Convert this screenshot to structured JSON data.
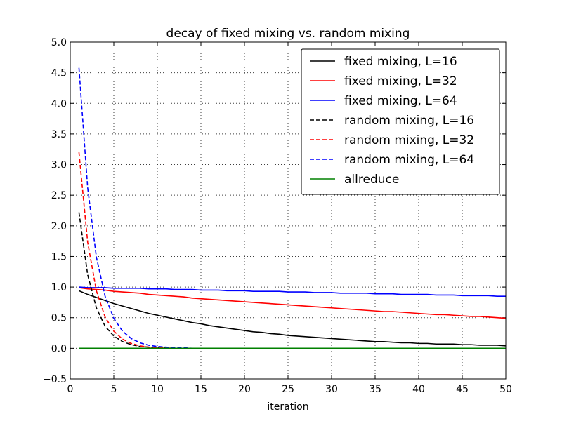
{
  "chart_data": {
    "type": "line",
    "title": "decay of fixed mixing vs. random mixing",
    "xlabel": "iteration",
    "ylabel": "",
    "xlim": [
      0,
      50
    ],
    "ylim": [
      -0.5,
      5.0
    ],
    "xticks": [
      0,
      5,
      10,
      15,
      20,
      25,
      30,
      35,
      40,
      45,
      50
    ],
    "yticks": [
      -0.5,
      0.0,
      0.5,
      1.0,
      1.5,
      2.0,
      2.5,
      3.0,
      3.5,
      4.0,
      4.5,
      5.0
    ],
    "xtick_labels": [
      "0",
      "5",
      "10",
      "15",
      "20",
      "25",
      "30",
      "35",
      "40",
      "45",
      "50"
    ],
    "ytick_labels": [
      "−0.5",
      "0.0",
      "0.5",
      "1.0",
      "1.5",
      "2.0",
      "2.5",
      "3.0",
      "3.5",
      "4.0",
      "4.5",
      "5.0"
    ],
    "grid": true,
    "legend_position": "top-right",
    "x": [
      1,
      2,
      3,
      4,
      5,
      6,
      7,
      8,
      9,
      10,
      11,
      12,
      13,
      14,
      15,
      16,
      17,
      18,
      19,
      20,
      21,
      22,
      23,
      24,
      25,
      26,
      27,
      28,
      29,
      30,
      31,
      32,
      33,
      34,
      35,
      36,
      37,
      38,
      39,
      40,
      41,
      42,
      43,
      44,
      45,
      46,
      47,
      48,
      49,
      50
    ],
    "series": [
      {
        "name": "fixed mixing, L=16",
        "color": "#000000",
        "style": "solid",
        "values": [
          0.94,
          0.88,
          0.83,
          0.78,
          0.73,
          0.69,
          0.65,
          0.61,
          0.57,
          0.54,
          0.51,
          0.48,
          0.45,
          0.42,
          0.4,
          0.37,
          0.35,
          0.33,
          0.31,
          0.29,
          0.27,
          0.26,
          0.24,
          0.23,
          0.21,
          0.2,
          0.19,
          0.18,
          0.17,
          0.16,
          0.15,
          0.14,
          0.13,
          0.12,
          0.11,
          0.11,
          0.1,
          0.09,
          0.09,
          0.08,
          0.08,
          0.07,
          0.07,
          0.07,
          0.06,
          0.06,
          0.05,
          0.05,
          0.05,
          0.04
        ]
      },
      {
        "name": "fixed mixing, L=32",
        "color": "#ff0000",
        "style": "solid",
        "values": [
          0.99,
          0.97,
          0.96,
          0.95,
          0.93,
          0.92,
          0.91,
          0.9,
          0.88,
          0.87,
          0.86,
          0.85,
          0.84,
          0.82,
          0.81,
          0.8,
          0.79,
          0.78,
          0.77,
          0.76,
          0.75,
          0.74,
          0.73,
          0.72,
          0.71,
          0.7,
          0.69,
          0.68,
          0.67,
          0.66,
          0.65,
          0.64,
          0.63,
          0.62,
          0.61,
          0.6,
          0.6,
          0.59,
          0.58,
          0.57,
          0.56,
          0.55,
          0.55,
          0.54,
          0.53,
          0.52,
          0.52,
          0.51,
          0.5,
          0.49
        ]
      },
      {
        "name": "fixed mixing, L=64",
        "color": "#0000ff",
        "style": "solid",
        "values": [
          1.0,
          0.99,
          0.99,
          0.99,
          0.98,
          0.98,
          0.98,
          0.98,
          0.97,
          0.97,
          0.97,
          0.96,
          0.96,
          0.96,
          0.95,
          0.95,
          0.95,
          0.94,
          0.94,
          0.94,
          0.93,
          0.93,
          0.93,
          0.93,
          0.92,
          0.92,
          0.92,
          0.91,
          0.91,
          0.91,
          0.9,
          0.9,
          0.9,
          0.9,
          0.89,
          0.89,
          0.89,
          0.88,
          0.88,
          0.88,
          0.88,
          0.87,
          0.87,
          0.87,
          0.86,
          0.86,
          0.86,
          0.86,
          0.85,
          0.85
        ]
      },
      {
        "name": "random mixing, L=16",
        "color": "#000000",
        "style": "dashed",
        "values": [
          2.22,
          1.2,
          0.66,
          0.36,
          0.2,
          0.11,
          0.06,
          0.03,
          0.02,
          0.01,
          0.01,
          0.0,
          0.0,
          0.0,
          0.0,
          0.0,
          0.0,
          0.0,
          0.0,
          0.0,
          0.0,
          0.0,
          0.0,
          0.0,
          0.0,
          0.0,
          0.0,
          0.0,
          0.0,
          0.0,
          0.0,
          0.0,
          0.0,
          0.0,
          0.0,
          0.0,
          0.0,
          0.0,
          0.0,
          0.0,
          0.0,
          0.0,
          0.0,
          0.0,
          0.0,
          0.0,
          0.0,
          0.0,
          0.0,
          0.0
        ]
      },
      {
        "name": "random mixing, L=32",
        "color": "#ff0000",
        "style": "dashed",
        "values": [
          3.2,
          1.73,
          0.94,
          0.51,
          0.28,
          0.15,
          0.08,
          0.04,
          0.02,
          0.01,
          0.01,
          0.0,
          0.0,
          0.0,
          0.0,
          0.0,
          0.0,
          0.0,
          0.0,
          0.0,
          0.0,
          0.0,
          0.0,
          0.0,
          0.0,
          0.0,
          0.0,
          0.0,
          0.0,
          0.0,
          0.0,
          0.0,
          0.0,
          0.0,
          0.0,
          0.0,
          0.0,
          0.0,
          0.0,
          0.0,
          0.0,
          0.0,
          0.0,
          0.0,
          0.0,
          0.0,
          0.0,
          0.0,
          0.0,
          0.0
        ]
      },
      {
        "name": "random mixing, L=64",
        "color": "#0000ff",
        "style": "dashed",
        "values": [
          4.58,
          2.62,
          1.49,
          0.85,
          0.49,
          0.28,
          0.16,
          0.09,
          0.05,
          0.03,
          0.02,
          0.01,
          0.01,
          0.0,
          0.0,
          0.0,
          0.0,
          0.0,
          0.0,
          0.0,
          0.0,
          0.0,
          0.0,
          0.0,
          0.0,
          0.0,
          0.0,
          0.0,
          0.0,
          0.0,
          0.0,
          0.0,
          0.0,
          0.0,
          0.0,
          0.0,
          0.0,
          0.0,
          0.0,
          0.0,
          0.0,
          0.0,
          0.0,
          0.0,
          0.0,
          0.0,
          0.0,
          0.0,
          0.0,
          0.0
        ]
      },
      {
        "name": "allreduce",
        "color": "#008000",
        "style": "solid",
        "values": [
          0.0,
          0.0,
          0.0,
          0.0,
          0.0,
          0.0,
          0.0,
          0.0,
          0.0,
          0.0,
          0.0,
          0.0,
          0.0,
          0.0,
          0.0,
          0.0,
          0.0,
          0.0,
          0.0,
          0.0,
          0.0,
          0.0,
          0.0,
          0.0,
          0.0,
          0.0,
          0.0,
          0.0,
          0.0,
          0.0,
          0.0,
          0.0,
          0.0,
          0.0,
          0.0,
          0.0,
          0.0,
          0.0,
          0.0,
          0.0,
          0.0,
          0.0,
          0.0,
          0.0,
          0.0,
          0.0,
          0.0,
          0.0,
          0.0,
          0.0
        ]
      }
    ]
  }
}
